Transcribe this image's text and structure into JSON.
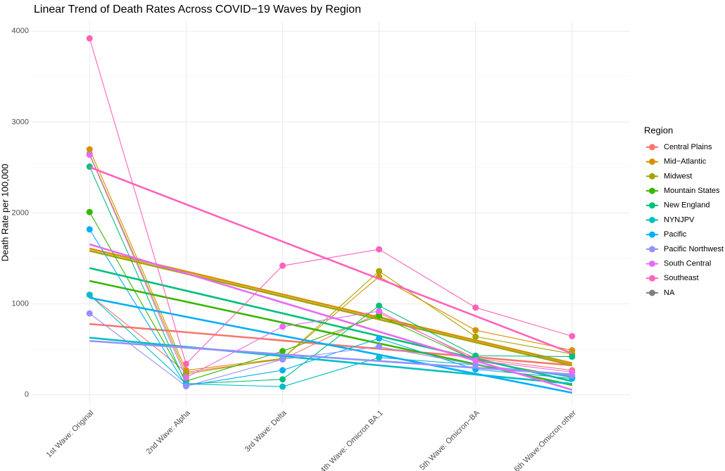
{
  "chart_data": {
    "type": "line",
    "title": "Linear Trend of Death Rates Across COVID−19 Waves by Region",
    "y_label": "Death Rate per 100,000",
    "legend_title": "Region",
    "legend": "right",
    "grid": true,
    "trend": "linear",
    "categories": [
      "1st Wave: Original",
      "2nd Wave: Alpha",
      "3rd Wave: Delta",
      "4th Wave: Omicron BA.1",
      "5th Wave: Omicron−BA",
      "6th Wave:Omicron other"
    ],
    "ylim": [
      -110,
      4110
    ],
    "yticks": [
      0,
      1000,
      2000,
      3000,
      4000
    ],
    "series": [
      {
        "name": "Central Plains",
        "color": "#F8766D",
        "values": [
          1100,
          250,
          390,
          900,
          400,
          270
        ]
      },
      {
        "name": "Mid−Atlantic",
        "color": "#D89000",
        "values": [
          2700,
          270,
          400,
          1300,
          710,
          490
        ]
      },
      {
        "name": "Midwest",
        "color": "#A3A500",
        "values": [
          2650,
          230,
          400,
          1360,
          640,
          450
        ]
      },
      {
        "name": "Mountain States",
        "color": "#39B600",
        "values": [
          2010,
          150,
          480,
          870,
          380,
          190
        ]
      },
      {
        "name": "New England",
        "color": "#00BF7D",
        "values": [
          2510,
          120,
          170,
          980,
          430,
          420
        ]
      },
      {
        "name": "NYNJPV",
        "color": "#00BFC4",
        "values": [
          1100,
          120,
          90,
          410,
          330,
          200
        ]
      },
      {
        "name": "Pacific",
        "color": "#00B0F6",
        "values": [
          1820,
          100,
          270,
          620,
          280,
          180
        ]
      },
      {
        "name": "Pacific Northwest",
        "color": "#9590FF",
        "values": [
          895,
          95,
          390,
          530,
          330,
          210
        ]
      },
      {
        "name": "South Central",
        "color": "#E76BF3",
        "values": [
          2640,
          190,
          750,
          920,
          380,
          250
        ]
      },
      {
        "name": "Southeast",
        "color": "#FF62BC",
        "values": [
          3920,
          340,
          1420,
          1600,
          960,
          645
        ]
      },
      {
        "name": "NA",
        "color": "#7F7F7F",
        "values": [
          null,
          null,
          null,
          null,
          null,
          null
        ]
      }
    ]
  }
}
